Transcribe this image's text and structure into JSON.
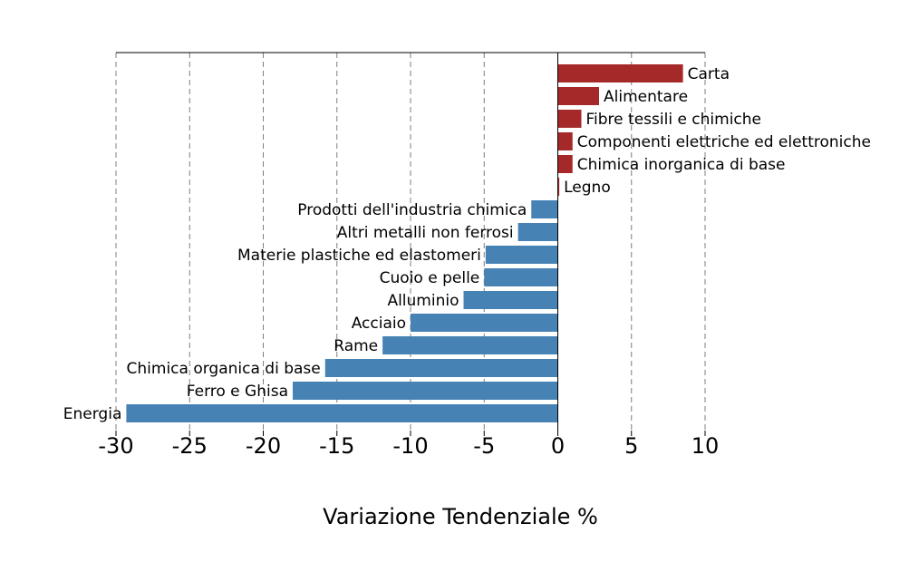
{
  "chart_data": {
    "type": "bar",
    "orientation": "horizontal",
    "xlabel": "Variazione Tendenziale %",
    "xlim": [
      -30,
      10
    ],
    "xticks": [
      -30,
      -25,
      -20,
      -15,
      -10,
      -5,
      0,
      5,
      10
    ],
    "xtick_labels": [
      "-30",
      "-25",
      "-20",
      "-15",
      "-10",
      "-5",
      "0",
      "5",
      "10"
    ],
    "grid": "vertical dashed",
    "colors": {
      "positive": "#a6292a",
      "negative": "#4682b4"
    },
    "categories": [
      "Carta",
      "Alimentare",
      "Fibre tessili e chimiche",
      "Componenti elettriche ed elettroniche",
      "Chimica inorganica di base",
      "Legno",
      "Prodotti dell'industria chimica",
      "Altri metalli non ferrosi",
      "Materie plastiche ed elastomeri",
      "Cuoio e pelle",
      "Alluminio",
      "Acciaio",
      "Rame",
      "Chimica organica di base",
      "Ferro e Ghisa",
      "Energia"
    ],
    "values": [
      8.5,
      2.8,
      1.6,
      1.0,
      1.0,
      0.1,
      -1.8,
      -2.7,
      -4.9,
      -5.0,
      -6.4,
      -10.0,
      -11.9,
      -15.8,
      -18.0,
      -29.3
    ]
  }
}
